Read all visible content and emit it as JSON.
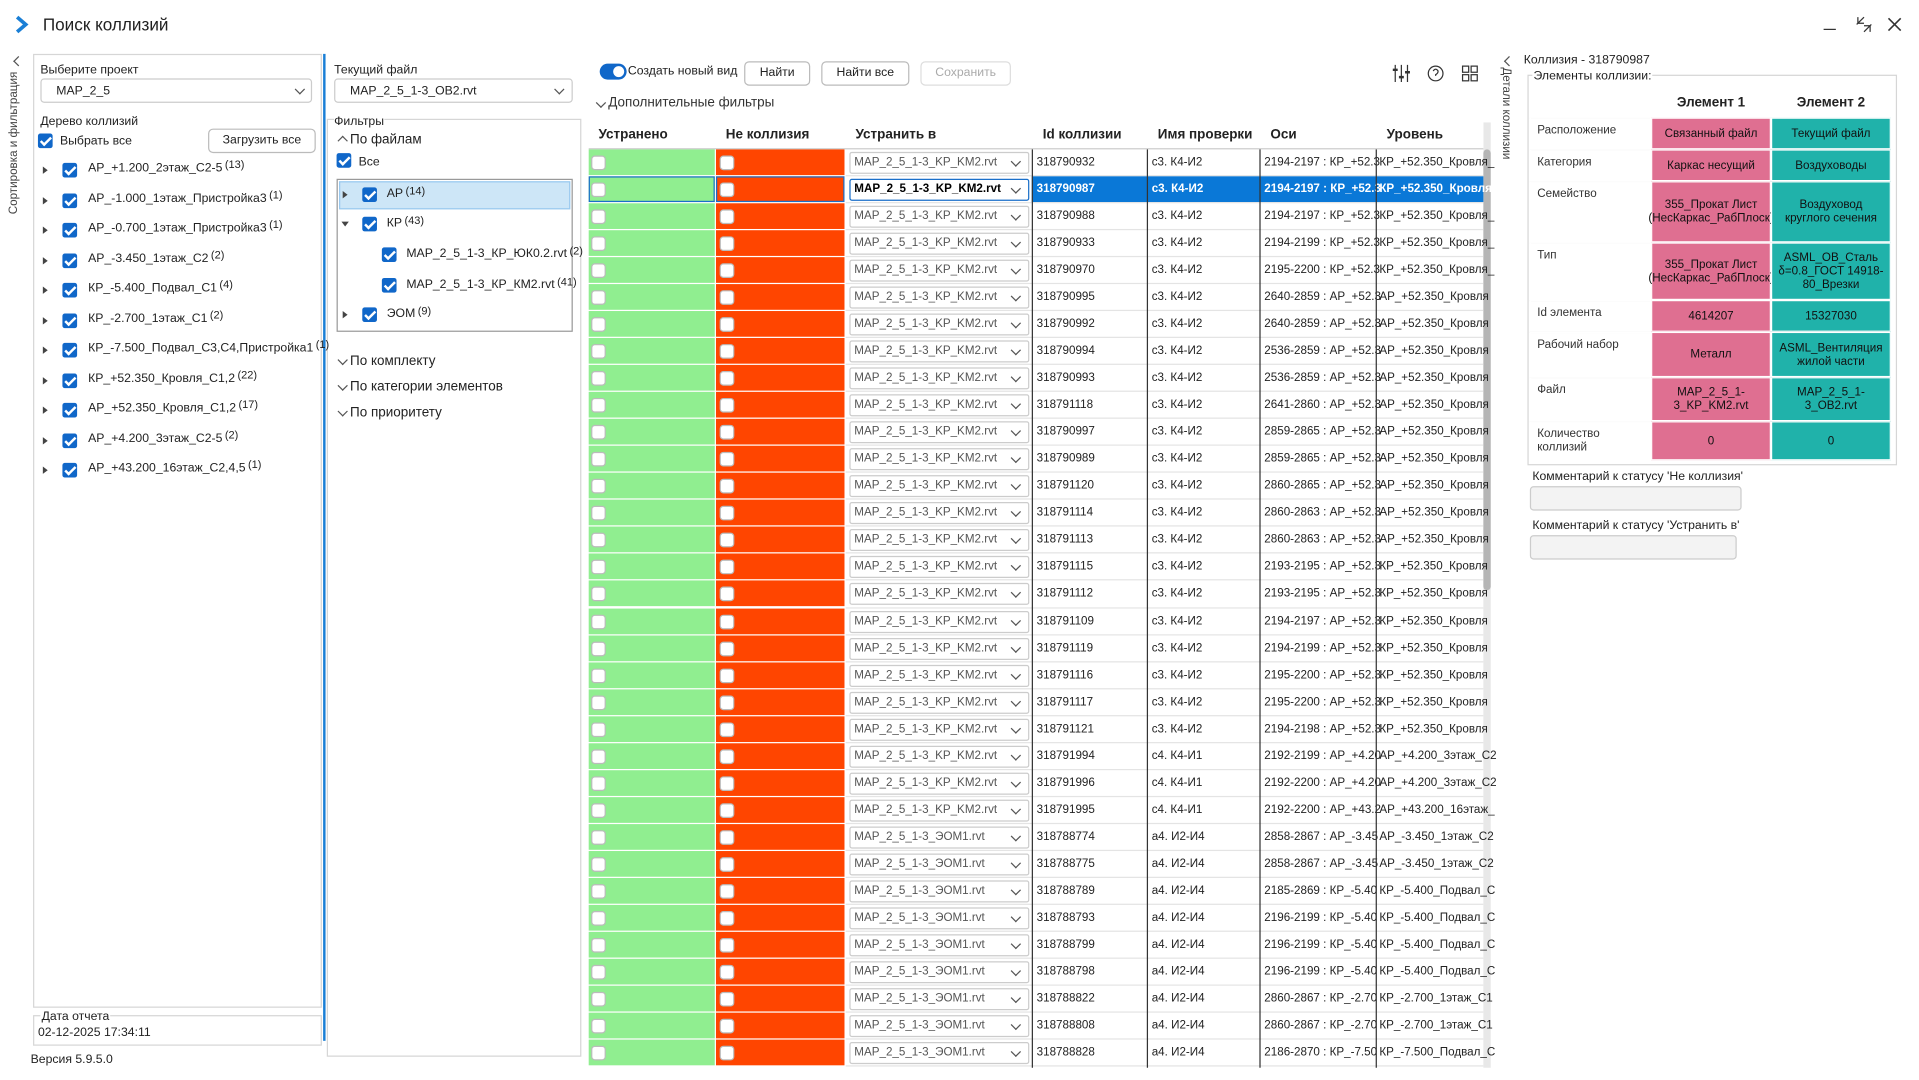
{
  "window": {
    "title": "Поиск коллизий"
  },
  "side_tabs": {
    "left": "Сортировка и фильтрация",
    "right": "Детали коллизии"
  },
  "project": {
    "label": "Выберите проект",
    "value": "MAP_2_5"
  },
  "tree": {
    "label": "Дерево коллизий",
    "select_all": "Выбрать все",
    "load_all": "Загрузить все",
    "items": [
      {
        "name": "АР_+1.200_2этаж_С2-5",
        "count": "(13)"
      },
      {
        "name": "АР_-1.000_1этаж_Пристройка3",
        "count": "(1)"
      },
      {
        "name": "АР_-0.700_1этаж_Пристройка3",
        "count": "(1)"
      },
      {
        "name": "АР_-3.450_1этаж_С2",
        "count": "(2)"
      },
      {
        "name": "КР_-5.400_Подвал_С1",
        "count": "(4)"
      },
      {
        "name": "КР_-2.700_1этаж_С1",
        "count": "(2)"
      },
      {
        "name": "КР_-7.500_Подвал_С3,С4,Пристройка1",
        "count": "(1)"
      },
      {
        "name": "КР_+52.350_Кровля_С1,2",
        "count": "(22)"
      },
      {
        "name": "АР_+52.350_Кровля_С1,2",
        "count": "(17)"
      },
      {
        "name": "АР_+4.200_3этаж_С2-5",
        "count": "(2)"
      },
      {
        "name": "АР_+43.200_16этаж_С2,4,5",
        "count": "(1)"
      }
    ]
  },
  "report": {
    "label": "Дата отчета",
    "date": "02-12-2025 17:34:11"
  },
  "version": "Версия 5.9.5.0",
  "current_file": {
    "label": "Текущий файл",
    "value": "MAP_2_5_1-3_OB2.rvt"
  },
  "filters": {
    "label": "Фильтры",
    "by_files": "По файлам",
    "all": "Все",
    "files": [
      {
        "name": "АР",
        "count": "(14)"
      },
      {
        "name": "КР",
        "count": "(43)",
        "children": [
          {
            "name": "MAP_2_5_1-3_КР_ЮК0.2.rvt",
            "count": "(2)"
          },
          {
            "name": "MAP_2_5_1-3_КР_КМ2.rvt",
            "count": "(41)"
          }
        ]
      },
      {
        "name": "ЭОМ",
        "count": "(9)"
      }
    ],
    "groups": [
      "По комплекту",
      "По категории элементов",
      "По приоритету"
    ]
  },
  "toolbar": {
    "new_view": "Создать новый вид",
    "find": "Найти",
    "find_all": "Найти все",
    "save": "Сохранить",
    "extra_filters": "Дополнительные фильтры"
  },
  "table": {
    "columns": [
      "Устранено",
      "Не коллизия",
      "Устранить в",
      "Id коллизии",
      "Имя проверки",
      "Оси",
      "Уровень"
    ],
    "rows": [
      [
        "MAP_2_5_1-3_KP_KM2.rvt",
        "318790932",
        "с3. К4-И2",
        "2194-2197 : КР_+52.3",
        "КР_+52.350_Кровля_"
      ],
      [
        "MAP_2_5_1-3_KP_KM2.rvt",
        "318790987",
        "с3. К4-И2",
        "2194-2197 : КР_+52.3",
        "КР_+52.350_Кровля_"
      ],
      [
        "MAP_2_5_1-3_KP_KM2.rvt",
        "318790988",
        "с3. К4-И2",
        "2194-2197 : КР_+52.3",
        "КР_+52.350_Кровля_"
      ],
      [
        "MAP_2_5_1-3_KP_KM2.rvt",
        "318790933",
        "с3. К4-И2",
        "2194-2199 : КР_+52.3",
        "КР_+52.350_Кровля_"
      ],
      [
        "MAP_2_5_1-3_KP_KM2.rvt",
        "318790970",
        "с3. К4-И2",
        "2195-2200 : КР_+52.3",
        "КР_+52.350_Кровля_"
      ],
      [
        "MAP_2_5_1-3_KP_KM2.rvt",
        "318790995",
        "с3. К4-И2",
        "2640-2859 : АР_+52.3",
        "АР_+52.350_Кровля"
      ],
      [
        "MAP_2_5_1-3_KP_KM2.rvt",
        "318790992",
        "с3. К4-И2",
        "2640-2859 : АР_+52.3",
        "АР_+52.350_Кровля"
      ],
      [
        "MAP_2_5_1-3_KP_KM2.rvt",
        "318790994",
        "с3. К4-И2",
        "2536-2859 : АР_+52.3",
        "АР_+52.350_Кровля"
      ],
      [
        "MAP_2_5_1-3_KP_KM2.rvt",
        "318790993",
        "с3. К4-И2",
        "2536-2859 : АР_+52.3",
        "АР_+52.350_Кровля"
      ],
      [
        "MAP_2_5_1-3_KP_KM2.rvt",
        "318791118",
        "с3. К4-И2",
        "2641-2860 : АР_+52.3",
        "АР_+52.350_Кровля"
      ],
      [
        "MAP_2_5_1-3_KP_KM2.rvt",
        "318790997",
        "с3. К4-И2",
        "2859-2865 : АР_+52.3",
        "АР_+52.350_Кровля"
      ],
      [
        "MAP_2_5_1-3_KP_KM2.rvt",
        "318790989",
        "с3. К4-И2",
        "2859-2865 : АР_+52.3",
        "АР_+52.350_Кровля"
      ],
      [
        "MAP_2_5_1-3_KP_KM2.rvt",
        "318791120",
        "с3. К4-И2",
        "2860-2865 : АР_+52.3",
        "АР_+52.350_Кровля"
      ],
      [
        "MAP_2_5_1-3_KP_KM2.rvt",
        "318791114",
        "с3. К4-И2",
        "2860-2863 : АР_+52.3",
        "АР_+52.350_Кровля"
      ],
      [
        "MAP_2_5_1-3_KP_KM2.rvt",
        "318791113",
        "с3. К4-И2",
        "2860-2863 : АР_+52.3",
        "АР_+52.350_Кровля"
      ],
      [
        "MAP_2_5_1-3_KP_KM2.rvt",
        "318791115",
        "с3. К4-И2",
        "2193-2195 : АР_+52.3",
        "КР_+52.350_Кровля"
      ],
      [
        "MAP_2_5_1-3_KP_KM2.rvt",
        "318791112",
        "с3. К4-И2",
        "2193-2195 : АР_+52.3",
        "КР_+52.350_Кровля"
      ],
      [
        "MAP_2_5_1-3_KP_KM2.rvt",
        "318791109",
        "с3. К4-И2",
        "2194-2197 : АР_+52.3",
        "КР_+52.350_Кровля"
      ],
      [
        "MAP_2_5_1-3_KP_KM2.rvt",
        "318791119",
        "с3. К4-И2",
        "2194-2199 : АР_+52.3",
        "КР_+52.350_Кровля"
      ],
      [
        "MAP_2_5_1-3_KP_KM2.rvt",
        "318791116",
        "с3. К4-И2",
        "2195-2200 : АР_+52.3",
        "КР_+52.350_Кровля"
      ],
      [
        "MAP_2_5_1-3_KP_KM2.rvt",
        "318791117",
        "с3. К4-И2",
        "2195-2200 : АР_+52.3",
        "КР_+52.350_Кровля"
      ],
      [
        "MAP_2_5_1-3_KP_KM2.rvt",
        "318791121",
        "с3. К4-И2",
        "2194-2198 : АР_+52.3",
        "КР_+52.350_Кровля"
      ],
      [
        "MAP_2_5_1-3_KP_KM2.rvt",
        "318791994",
        "с4. К4-И1",
        "2192-2199 : АР_+4.20",
        "АР_+4.200_3этаж_С2"
      ],
      [
        "MAP_2_5_1-3_KP_KM2.rvt",
        "318791996",
        "с4. К4-И1",
        "2192-2200 : АР_+4.20",
        "АР_+4.200_3этаж_С2"
      ],
      [
        "MAP_2_5_1-3_KP_KM2.rvt",
        "318791995",
        "с4. К4-И1",
        "2192-2200 : АР_+43.2",
        "АР_+43.200_16этаж_"
      ],
      [
        "MAP_2_5_1-3_ЭОМ1.rvt",
        "318788774",
        "а4. И2-И4",
        "2858-2867 : АР_-3.45",
        "АР_-3.450_1этаж_С2"
      ],
      [
        "MAP_2_5_1-3_ЭОМ1.rvt",
        "318788775",
        "а4. И2-И4",
        "2858-2867 : АР_-3.45",
        "АР_-3.450_1этаж_С2"
      ],
      [
        "MAP_2_5_1-3_ЭОМ1.rvt",
        "318788789",
        "а4. И2-И4",
        "2185-2869 : КР_-5.40",
        "КР_-5.400_Подвал_С"
      ],
      [
        "MAP_2_5_1-3_ЭОМ1.rvt",
        "318788793",
        "а4. И2-И4",
        "2196-2199 : КР_-5.40",
        "КР_-5.400_Подвал_С"
      ],
      [
        "MAP_2_5_1-3_ЭОМ1.rvt",
        "318788799",
        "а4. И2-И4",
        "2196-2199 : КР_-5.40",
        "КР_-5.400_Подвал_С"
      ],
      [
        "MAP_2_5_1-3_ЭОМ1.rvt",
        "318788798",
        "а4. И2-И4",
        "2196-2199 : КР_-5.40",
        "КР_-5.400_Подвал_С"
      ],
      [
        "MAP_2_5_1-3_ЭОМ1.rvt",
        "318788822",
        "а4. И2-И4",
        "2860-2867 : КР_-2.70",
        "КР_-2.700_1этаж_С1"
      ],
      [
        "MAP_2_5_1-3_ЭОМ1.rvt",
        "318788808",
        "а4. И2-И4",
        "2860-2867 : КР_-2.70",
        "КР_-2.700_1этаж_С1"
      ],
      [
        "MAP_2_5_1-3_ЭОМ1.rvt",
        "318788828",
        "а4. И2-И4",
        "2186-2870 : КР_-7.50",
        "КР_-7.500_Подвал_С"
      ]
    ]
  },
  "details": {
    "title": "Коллизия - 318790987",
    "group": "Элементы коллизии:",
    "headers": [
      "Элемент 1",
      "Элемент 2"
    ],
    "rows": [
      [
        "Расположение",
        "Связанный файл",
        "Текущий файл"
      ],
      [
        "Категория",
        "Каркас несущий",
        "Воздуховоды"
      ],
      [
        "Семейство",
        "355_Прокат Лист (НесКаркас_РабПлоск)",
        "Воздуховод круглого сечения"
      ],
      [
        "Тип",
        "355_Прокат Лист (НесКаркас_РабПлоск)",
        "ASML_OB_Сталь δ=0.8_ГОСТ 14918-80_Врезки"
      ],
      [
        "Id элемента",
        "4614207",
        "15327030"
      ],
      [
        "Рабочий набор",
        "Металл",
        "ASML_Вентиляция жилой части"
      ],
      [
        "Файл",
        "MAP_2_5_1-3_KP_KM2.rvt",
        "MAP_2_5_1-3_OB2.rvt"
      ],
      [
        "Количество коллизий",
        "0",
        "0"
      ]
    ],
    "comment_not_collision": "Комментарий к статусу 'Не коллизия'",
    "comment_fix_in": "Комментарий к статусу 'Устранить в'"
  }
}
